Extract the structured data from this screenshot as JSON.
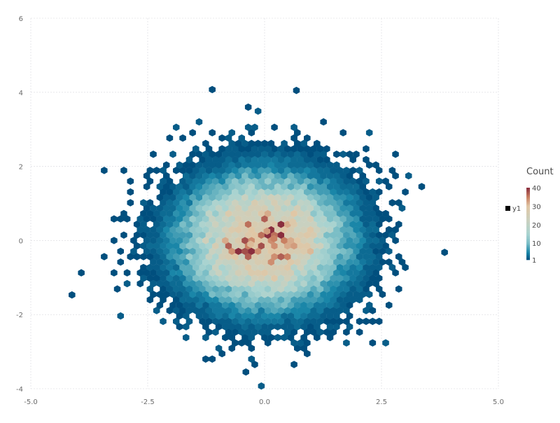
{
  "chart_data": {
    "type": "hexbin",
    "title": "",
    "xlabel": "",
    "ylabel": "",
    "xlim": [
      -5.0,
      5.0
    ],
    "ylim": [
      -4,
      6
    ],
    "x_ticks": [
      "-5.0",
      "-2.5",
      "0.0",
      "2.5",
      "5.0"
    ],
    "x_tick_values": [
      -5.0,
      -2.5,
      0.0,
      2.5,
      5.0
    ],
    "y_ticks": [
      "-4",
      "-2",
      "0",
      "2",
      "4",
      "6"
    ],
    "y_tick_values": [
      -4,
      -2,
      0,
      2,
      4,
      6
    ],
    "grid": true,
    "series": [
      {
        "name": "y1",
        "center": [
          0,
          0
        ],
        "spread": 1,
        "peak_count": 38
      }
    ],
    "notable_bins": [
      {
        "x": 0.68,
        "y": 4.05,
        "count": 1
      },
      {
        "x": -0.35,
        "y": 3.6,
        "count": 1
      },
      {
        "x": -4.12,
        "y": -1.47,
        "count": 1
      },
      {
        "x": 3.85,
        "y": -0.32,
        "count": 1
      },
      {
        "x": -0.4,
        "y": -3.55,
        "count": 1
      },
      {
        "x": 0.2,
        "y": 0.05,
        "count": 35
      },
      {
        "x": 0.05,
        "y": 0.25,
        "count": 33
      },
      {
        "x": -0.3,
        "y": -0.1,
        "count": 31
      },
      {
        "x": 0.6,
        "y": 0.5,
        "count": 29
      }
    ],
    "legend": {
      "title": "Count",
      "placement": "right",
      "ticks": [
        "40",
        "30",
        "20",
        "10",
        "1"
      ],
      "tick_values": [
        40,
        30,
        20,
        10,
        1
      ],
      "key_label": "y1"
    },
    "colorscale": [
      {
        "value": 1,
        "color": "#004f7e"
      },
      {
        "value": 5,
        "color": "#1a86a8"
      },
      {
        "value": 10,
        "color": "#7bbec6"
      },
      {
        "value": 15,
        "color": "#a9d3d0"
      },
      {
        "value": 22,
        "color": "#c9d1c0"
      },
      {
        "value": 30,
        "color": "#e0c7a6"
      },
      {
        "value": 35,
        "color": "#c98062"
      },
      {
        "value": 40,
        "color": "#8a2e3e"
      }
    ]
  }
}
